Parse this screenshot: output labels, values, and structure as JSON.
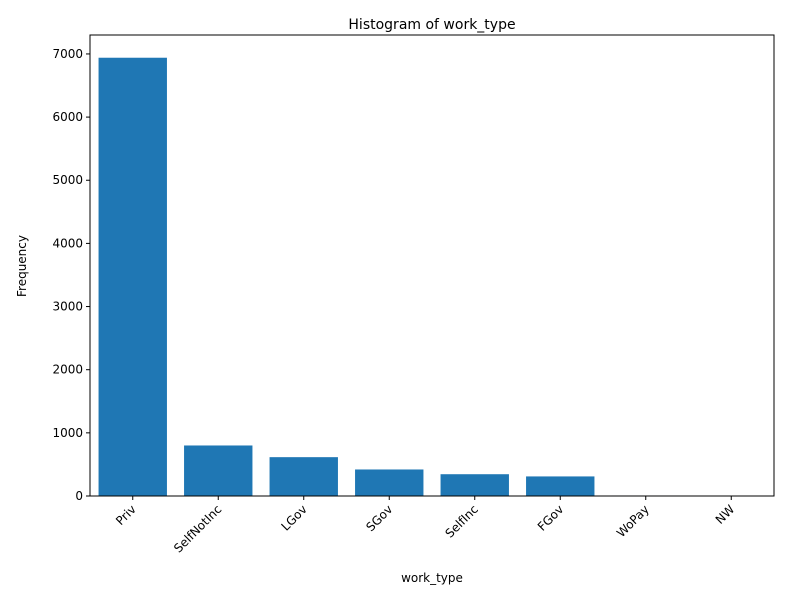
{
  "chart_data": {
    "type": "bar",
    "title": "Histogram of work_type",
    "xlabel": "work_type",
    "ylabel": "Frequency",
    "categories": [
      "Priv",
      "SelfNotInc",
      "LGov",
      "SGov",
      "SelfInc",
      "FGov",
      "WoPay",
      "NW"
    ],
    "values": [
      6940,
      800,
      615,
      420,
      345,
      310,
      8,
      6
    ],
    "ylim": [
      0,
      7300
    ],
    "yticks": [
      0,
      1000,
      2000,
      3000,
      4000,
      5000,
      6000,
      7000
    ],
    "ytick_labels": [
      "0",
      "1000",
      "2000",
      "3000",
      "4000",
      "5000",
      "6000",
      "7000"
    ],
    "bar_color": "#1f77b4",
    "grid": false,
    "legend": "none"
  }
}
